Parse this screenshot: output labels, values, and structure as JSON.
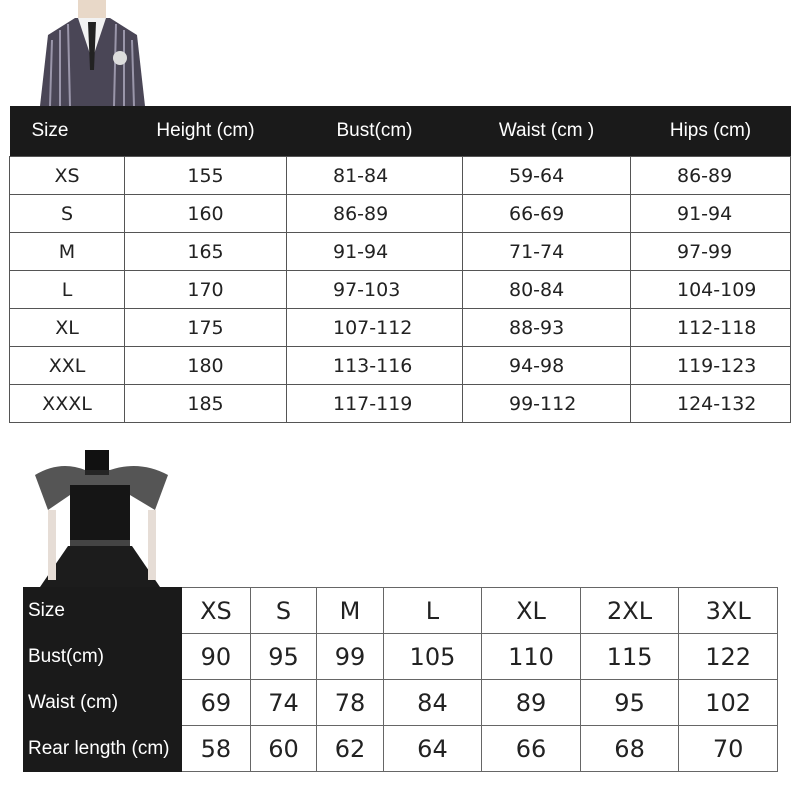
{
  "jacket_image": {
    "icon": "striped-blazer-image"
  },
  "dress_image": {
    "icon": "black-dress-image"
  },
  "table1": {
    "headers": [
      "Size",
      "Height (cm)",
      "Bust(cm)",
      "Waist (cm )",
      "Hips (cm)"
    ],
    "rows": [
      [
        "XS",
        "155",
        "81-84",
        "59-64",
        "86-89"
      ],
      [
        "S",
        "160",
        "86-89",
        "66-69",
        "91-94"
      ],
      [
        "M",
        "165",
        "91-94",
        "71-74",
        "97-99"
      ],
      [
        "L",
        "170",
        "97-103",
        "80-84",
        "104-109"
      ],
      [
        "XL",
        "175",
        "107-112",
        "88-93",
        "112-118"
      ],
      [
        "XXL",
        "180",
        "113-116",
        "94-98",
        "119-123"
      ],
      [
        "XXXL",
        "185",
        "117-119",
        "99-112",
        "124-132"
      ]
    ]
  },
  "table2": {
    "rows": [
      [
        "Size",
        "XS",
        "S",
        "M",
        "L",
        "XL",
        "2XL",
        "3XL"
      ],
      [
        "Bust(cm)",
        "90",
        "95",
        "99",
        "105",
        "110",
        "115",
        "122"
      ],
      [
        "Waist (cm)",
        "69",
        "74",
        "78",
        "84",
        "89",
        "95",
        "102"
      ],
      [
        "Rear length (cm)",
        "58",
        "60",
        "62",
        "64",
        "66",
        "68",
        "70"
      ]
    ]
  }
}
